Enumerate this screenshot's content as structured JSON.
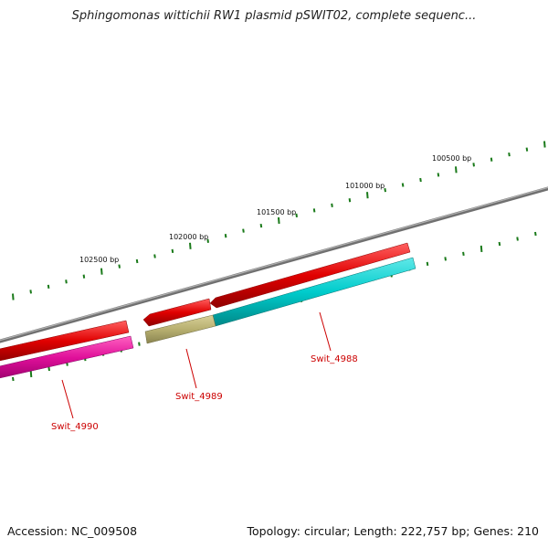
{
  "title": "Sphingomonas wittichii RW1 plasmid pSWIT02, complete sequenc...",
  "footer": {
    "accession": "Accession: NC_009508",
    "stats": "Topology: circular; Length: 222,757 bp; Genes: 210"
  },
  "scale_labels": [
    "100500 bp",
    "101000 bp",
    "101500 bp",
    "102000 bp",
    "102500 bp"
  ],
  "genes": [
    {
      "name": "Swit_4988",
      "color": "#e00000",
      "track": "forward"
    },
    {
      "name": "Swit_4989",
      "color": "#e00000",
      "track": "forward"
    },
    {
      "name": "Swit_4990",
      "color": "#e00000",
      "track": "forward"
    }
  ],
  "colors": {
    "backbone": "#808080",
    "tick": "#1a7a1a",
    "gene_forward": "#e00000",
    "cog_cyan": "#00cccc",
    "cog_olive": "#b8b070",
    "cog_magenta": "#e0109a",
    "label": "#cc0000"
  }
}
